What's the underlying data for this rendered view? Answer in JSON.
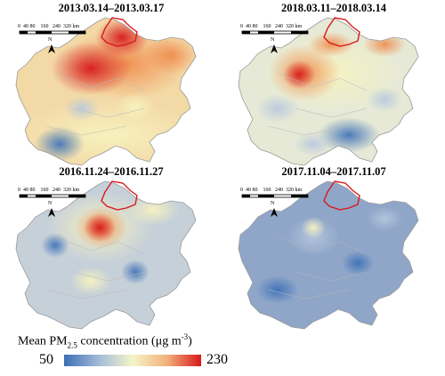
{
  "panels": [
    {
      "title": "2013.03.14–2013.03.17",
      "scheme": "p2013"
    },
    {
      "title": "2018.03.11–2018.03.14",
      "scheme": "p2018"
    },
    {
      "title": "2016.11.24–2016.11.27",
      "scheme": "p2016"
    },
    {
      "title": "2017.11.04–2017.11.07",
      "scheme": "p2017"
    }
  ],
  "scalebar": {
    "ticks": [
      "0",
      "40",
      "80",
      "160",
      "240",
      "320"
    ],
    "unit": "km"
  },
  "north_arrow": "N",
  "legend": {
    "title_prefix": "Mean PM",
    "title_sub": "2.5",
    "title_mid": " concentration (μg m",
    "title_sup": "-3",
    "title_suffix": ")",
    "min": "50",
    "max": "230",
    "colors": [
      "#3b6fb6",
      "#a9bfd9",
      "#f5f5c8",
      "#f2b27a",
      "#d7191c"
    ]
  },
  "outline_color": "#d7191c"
}
